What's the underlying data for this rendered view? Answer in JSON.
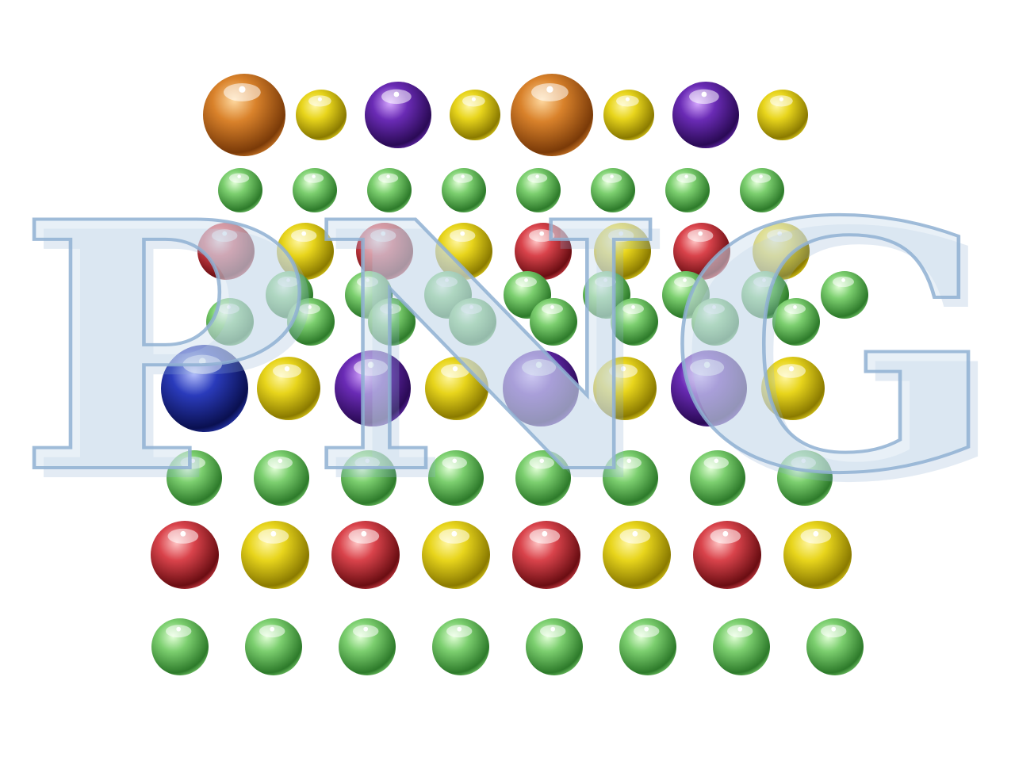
{
  "image": {
    "title": "",
    "main_text": "PNG",
    "background_color": "#ffffff",
    "letters_fill": "#d5e3f0",
    "letters_stroke": "#8fb0d2",
    "palette": {
      "gold": {
        "base": "#d9822b",
        "light": "#ffd9a0",
        "dark": "#7a3a08"
      },
      "yellow": {
        "base": "#e8d51c",
        "light": "#fff6a0",
        "dark": "#8a7a00"
      },
      "purple": {
        "base": "#6a2bb5",
        "light": "#d6a8ff",
        "dark": "#2a0a55"
      },
      "green": {
        "base": "#7ccf6f",
        "light": "#e3ffd8",
        "dark": "#2d7a2a"
      },
      "red": {
        "base": "#d9434b",
        "light": "#ffc4c4",
        "dark": "#6a0d12"
      },
      "blue": {
        "base": "#2a3bbb",
        "light": "#b9c4ff",
        "dark": "#0a1050"
      }
    },
    "ball_rows": [
      [
        "gold",
        "yellow",
        "purple",
        "yellow",
        "gold",
        "yellow",
        "purple",
        "yellow"
      ],
      [
        "green",
        "green",
        "green",
        "green",
        "green",
        "green",
        "green",
        "green"
      ],
      [
        "red",
        "yellow",
        "red",
        "yellow",
        "red",
        "yellow",
        "red",
        "yellow"
      ],
      [
        "green",
        "green",
        "green",
        "green",
        "green",
        "green",
        "green",
        "green"
      ],
      [
        "green",
        "green",
        "green",
        "green",
        "green",
        "green",
        "green",
        "green"
      ],
      [
        "blue",
        "yellow",
        "purple",
        "yellow",
        "purple",
        "yellow",
        "purple",
        "yellow"
      ],
      [
        "green",
        "green",
        "green",
        "green",
        "green",
        "green",
        "green",
        "green"
      ],
      [
        "red",
        "yellow",
        "red",
        "yellow",
        "red",
        "yellow",
        "red",
        "yellow"
      ],
      [
        "green",
        "green",
        "green",
        "green",
        "green",
        "green",
        "green",
        "green"
      ]
    ]
  }
}
